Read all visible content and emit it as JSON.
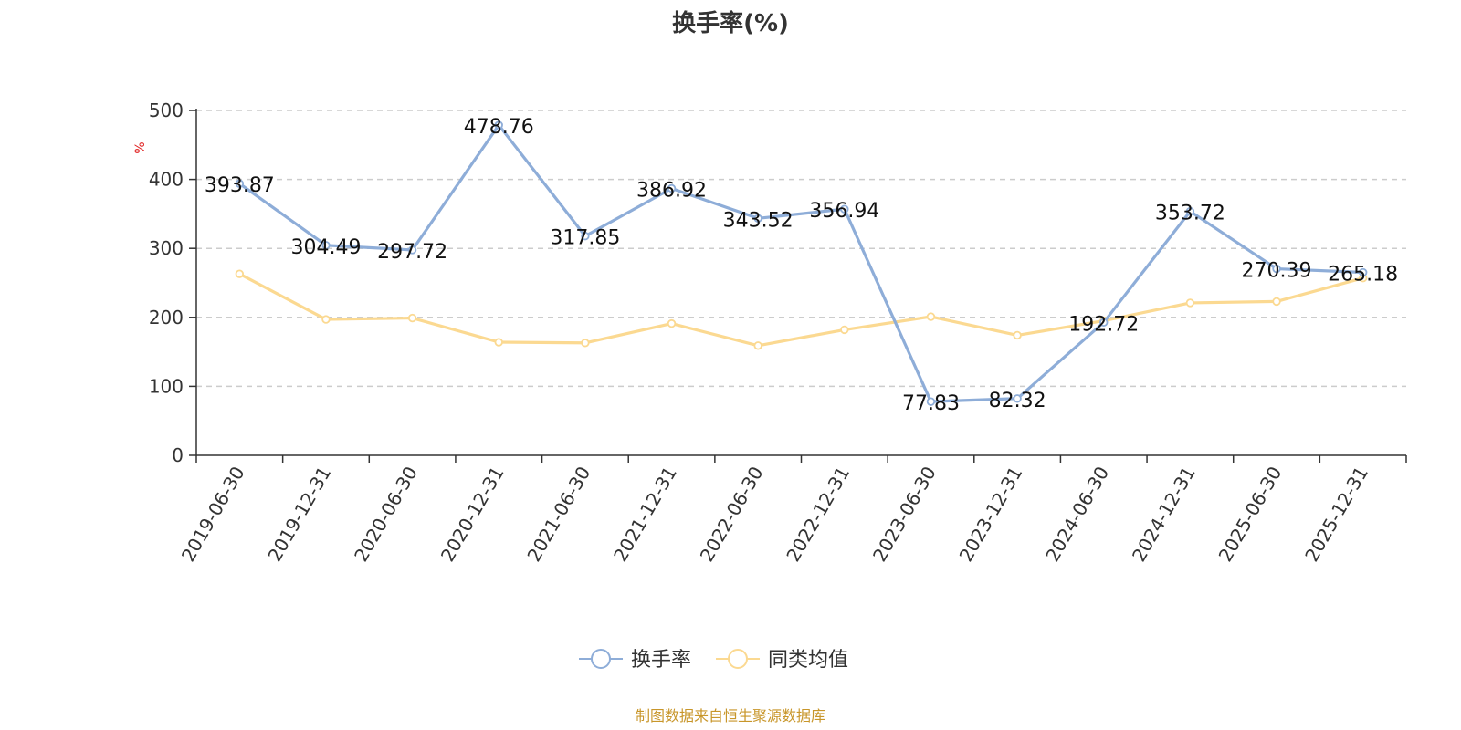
{
  "chart_data": {
    "type": "line",
    "title": "换手率(%)",
    "y_unit": "%",
    "ylim": [
      0,
      500
    ],
    "yticks": [
      "0",
      "100",
      "200",
      "300",
      "400",
      "500"
    ],
    "categories": [
      "2019-06-30",
      "2019-12-31",
      "2020-06-30",
      "2020-12-31",
      "2021-06-30",
      "2021-12-31",
      "2022-06-30",
      "2022-12-31",
      "2023-06-30",
      "2023-12-31",
      "2024-06-30",
      "2024-12-31",
      "2025-06-30",
      "2025-12-31"
    ],
    "grid": "dashed horizontal",
    "legend_position": "bottom-center",
    "series": [
      {
        "name": "换手率",
        "color": "#8eadd8",
        "values": [
          393.87,
          304.49,
          297.72,
          478.76,
          317.85,
          386.92,
          343.52,
          356.94,
          77.83,
          82.32,
          192.72,
          353.72,
          270.39,
          265.18
        ],
        "labels": [
          "393.87",
          "304.49",
          "297.72",
          "478.76",
          "317.85",
          "386.92",
          "343.52",
          "356.94",
          "77.83",
          "82.32",
          "192.72",
          "353.72",
          "270.39",
          "265.18"
        ]
      },
      {
        "name": "同类均值",
        "color": "#fbd991",
        "values": [
          263,
          197,
          199,
          164,
          163,
          191,
          159,
          182,
          201,
          174,
          195,
          221,
          223,
          257
        ]
      }
    ]
  },
  "source_text": "制图数据来自恒生聚源数据库"
}
